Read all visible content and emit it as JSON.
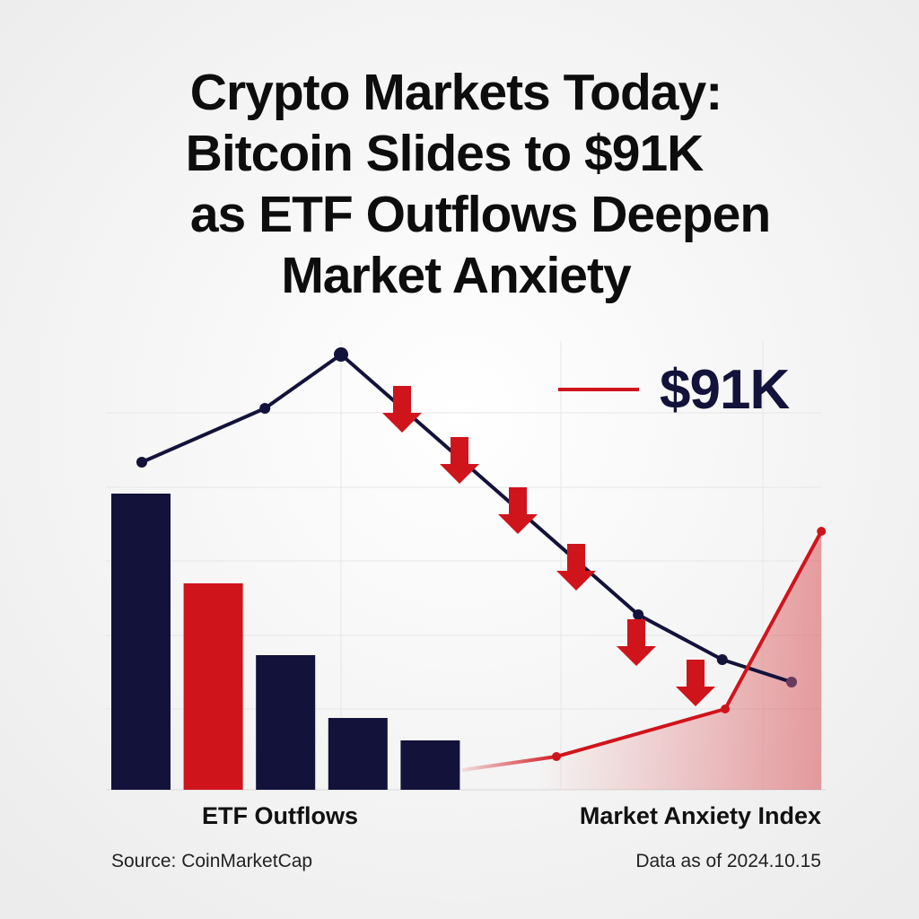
{
  "chart_data": {
    "type": "combo",
    "title_lines": [
      "Crypto Markets Today:",
      "Bitcoin Slides to $91K",
      "as ETF Outflows Deepen",
      "Market Anxiety"
    ],
    "xlim": [
      0,
      100
    ],
    "ylim": [
      0,
      100
    ],
    "bars": {
      "label": "ETF Outflows",
      "values": [
        66,
        46,
        30,
        16,
        11
      ],
      "colors": [
        "#13123a",
        "#d0141c",
        "#13123a",
        "#13123a",
        "#13123a"
      ]
    },
    "lines": [
      {
        "color": "#13123a",
        "x": [
          4.75,
          21.9,
          32.5,
          73.9,
          85.6,
          95.25
        ],
        "values": [
          73,
          85,
          97,
          39,
          29,
          24
        ]
      },
      {
        "color": "#d0141c",
        "label": "Market Anxiety Index",
        "x": [
          49.4,
          62.5,
          86,
          99.4
        ],
        "values": [
          4.4,
          7.4,
          18,
          57.6
        ]
      }
    ],
    "legend": {
      "color": "#d0141c",
      "text": "$91K"
    },
    "source": "Source: CoinMarketCap",
    "date_note": "Data as of 2024.10.15"
  }
}
